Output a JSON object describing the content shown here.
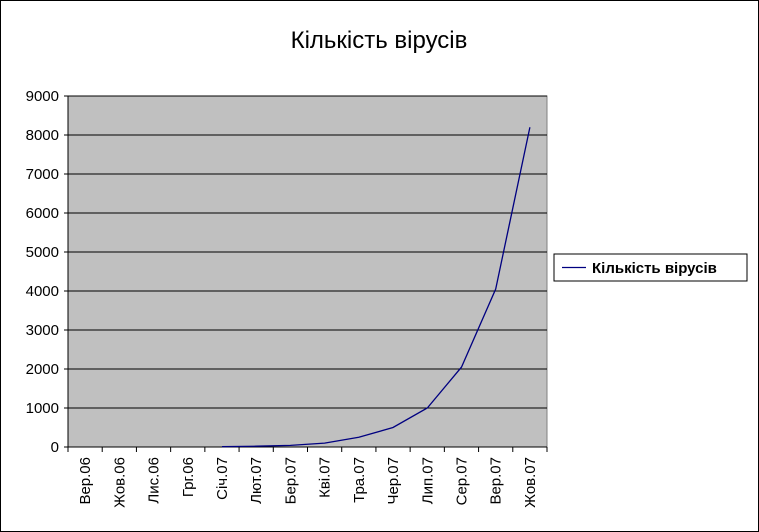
{
  "chart_data": {
    "type": "line",
    "title": "Кількість вірусів",
    "xlabel": "",
    "ylabel": "",
    "categories": [
      "Вер.06",
      "Жов.06",
      "Лис.06",
      "Грг.06",
      "Січ.07",
      "Лют.07",
      "Бер.07",
      "Кві.07",
      "Тра.07",
      "Чер.07",
      "Лип.07",
      "Сер.07",
      "Вер.07",
      "Жов.07"
    ],
    "series": [
      {
        "name": "Кількість вірусів",
        "color": "#000080",
        "values": [
          0,
          0,
          0,
          0,
          10,
          20,
          40,
          100,
          250,
          500,
          1000,
          2050,
          4050,
          8200
        ]
      }
    ],
    "ylim": [
      0,
      9000
    ],
    "yticks": [
      0,
      1000,
      2000,
      3000,
      4000,
      5000,
      6000,
      7000,
      8000,
      9000
    ],
    "grid": true,
    "plot_background": "#c0c0c0",
    "legend_position": "right"
  }
}
